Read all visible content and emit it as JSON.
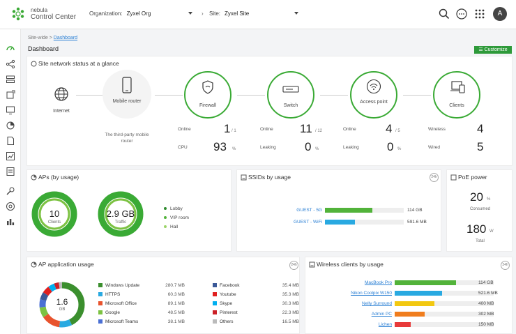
{
  "header": {
    "brand_line1": "nebula",
    "brand_line2": "Control Center",
    "org_label": "Organization:",
    "org_value": "Zyxel Org",
    "site_label": "Site:",
    "site_value": "Zyxel Site",
    "avatar_letter": "A",
    "accent": "#3aaa35"
  },
  "breadcrumb": {
    "part1": "Site-wide",
    "sep": ">",
    "part2": "Dashboard"
  },
  "page_title": "Dashboard",
  "customize_label": "Customize",
  "status": {
    "title": "Site network status at a glance",
    "nodes": {
      "internet": "Internet",
      "router": "Mobile router",
      "firewall": "Firewall",
      "switch": "Switch",
      "ap": "Access point",
      "clients": "Clients"
    },
    "router_note": "The third-party mobile router",
    "firewall": {
      "online_label": "Online",
      "online": "1",
      "online_total": "/ 1",
      "cpu_label": "CPU",
      "cpu": "93",
      "cpu_unit": "%"
    },
    "switch": {
      "online_label": "Online",
      "online": "11",
      "online_total": "/ 12",
      "leaking_label": "Leaking",
      "leaking": "0",
      "leaking_unit": "%"
    },
    "ap": {
      "online_label": "Online",
      "online": "4",
      "online_total": "/ 5",
      "leaking_label": "Leaking",
      "leaking": "0",
      "leaking_unit": "%"
    },
    "clients": {
      "wireless_label": "Wireless",
      "wireless": "4",
      "wired_label": "Wired",
      "wired": "5"
    }
  },
  "aps_by_usage": {
    "title": "APs (by usage)",
    "clients_value": "10",
    "clients_label": "Clients",
    "traffic_value": "2.9 GB",
    "traffic_label": "Traffic",
    "legend": [
      "Lobby",
      "VIP room",
      "Hall"
    ]
  },
  "ssids_by_usage": {
    "title": "SSIDs by usage",
    "rows": [
      {
        "label": "GUEST - 5G",
        "value": "114 GB",
        "fraction": 0.6,
        "color": "#52b33a"
      },
      {
        "label": "GUEST - WiFi",
        "value": "591.6 MB",
        "fraction": 0.38,
        "color": "#29a9e1"
      }
    ]
  },
  "poe_power": {
    "title": "PoE power",
    "consumed": "20",
    "consumed_unit": "%",
    "consumed_label": "Consumed",
    "total": "180",
    "total_unit": "W",
    "total_label": "Total"
  },
  "ap_app_usage": {
    "title": "AP application usage",
    "center_value": "1.6",
    "center_unit": "GB",
    "left_apps": [
      {
        "name": "Windows Update",
        "value": "280.7 MB",
        "color": "#3b8f2e"
      },
      {
        "name": "HTTPS",
        "value": "60.3 MB",
        "color": "#29a9e1"
      },
      {
        "name": "Microsoft Office",
        "value": "89.1 MB",
        "color": "#e8532d"
      },
      {
        "name": "Google",
        "value": "48.5 MB",
        "color": "#7cc242"
      },
      {
        "name": "Microsoft Teams",
        "value": "38.1 MB",
        "color": "#4a6fd4"
      }
    ],
    "right_apps": [
      {
        "name": "Facebook",
        "value": "35.4 MB",
        "color": "#3b5998"
      },
      {
        "name": "Youtube",
        "value": "35.3 MB",
        "color": "#e02020"
      },
      {
        "name": "Skype",
        "value": "30.3 MB",
        "color": "#00aff0"
      },
      {
        "name": "Pinterest",
        "value": "22.3 MB",
        "color": "#cb2027"
      },
      {
        "name": "Others",
        "value": "16.5 MB",
        "color": "#bbbbbb"
      }
    ]
  },
  "wireless_clients": {
    "title": "Wireless clients by usage",
    "rows": [
      {
        "label": "MacBook Pro",
        "value": "114 GB",
        "fraction": 0.62,
        "color": "#52b33a"
      },
      {
        "label": "Nikon Coolpix W150",
        "value": "521.6 MB",
        "fraction": 0.48,
        "color": "#29a9e1"
      },
      {
        "label": "Nelly Surround",
        "value": "400 MB",
        "fraction": 0.4,
        "color": "#f2c811"
      },
      {
        "label": "Admin PC",
        "value": "302 MB",
        "fraction": 0.3,
        "color": "#f07d1e"
      },
      {
        "label": "Lichen",
        "value": "150 MB",
        "fraction": 0.16,
        "color": "#e83a3a"
      }
    ]
  }
}
